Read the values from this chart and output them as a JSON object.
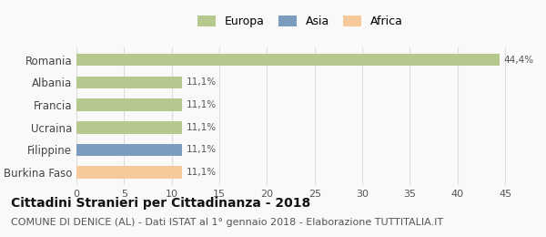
{
  "categories": [
    "Romania",
    "Albania",
    "Francia",
    "Ucraina",
    "Filippine",
    "Burkina Faso"
  ],
  "values": [
    44.4,
    11.1,
    11.1,
    11.1,
    11.1,
    11.1
  ],
  "labels": [
    "44,4%",
    "11,1%",
    "11,1%",
    "11,1%",
    "11,1%",
    "11,1%"
  ],
  "colors": [
    "#b5c98e",
    "#b5c98e",
    "#b5c98e",
    "#b5c98e",
    "#7b9bbf",
    "#f5c99a"
  ],
  "legend_entries": [
    {
      "label": "Europa",
      "color": "#b5c98e"
    },
    {
      "label": "Asia",
      "color": "#7b9bbf"
    },
    {
      "label": "Africa",
      "color": "#f5c99a"
    }
  ],
  "xlim": [
    0,
    47
  ],
  "xticks": [
    0,
    5,
    10,
    15,
    20,
    25,
    30,
    35,
    40,
    45
  ],
  "title": "Cittadini Stranieri per Cittadinanza - 2018",
  "subtitle": "COMUNE DI DENICE (AL) - Dati ISTAT al 1° gennaio 2018 - Elaborazione TUTTITALIA.IT",
  "title_fontsize": 10,
  "subtitle_fontsize": 8,
  "background_color": "#f9f9f9",
  "grid_color": "#dddddd"
}
